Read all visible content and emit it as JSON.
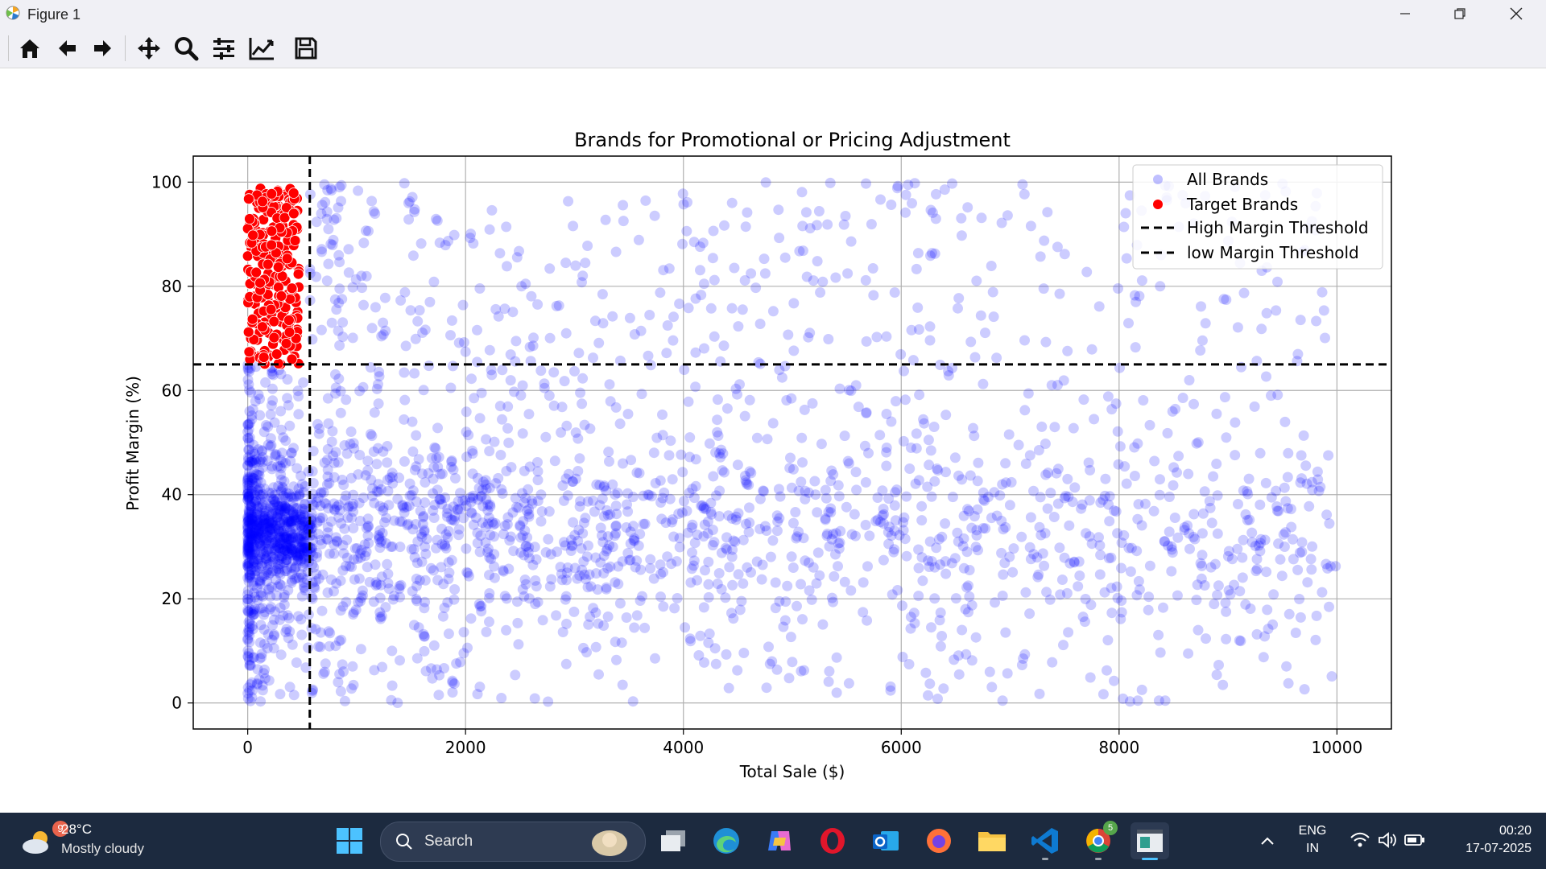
{
  "window": {
    "title": "Figure 1"
  },
  "toolbar": {
    "buttons": [
      "home-icon",
      "back-icon",
      "forward-icon",
      "pan-icon",
      "zoom-icon",
      "configure-subplots-icon",
      "edit-axis-icon",
      "save-icon"
    ]
  },
  "chart_data": {
    "type": "scatter",
    "title": "Brands for Promotional or Pricing Adjustment",
    "xlabel": "Total Sale ($)",
    "ylabel": "Profit Margin (%)",
    "xlim": [
      -500,
      10500
    ],
    "ylim": [
      -5,
      105
    ],
    "xticks": [
      "0",
      "2000",
      "4000",
      "6000",
      "8000",
      "10000"
    ],
    "yticks": [
      "0",
      "20",
      "40",
      "60",
      "80",
      "100"
    ],
    "grid": true,
    "legend_position": "top-right",
    "series": [
      {
        "name": "All Brands",
        "color": "#0000ff",
        "alpha": 0.2,
        "marker": "circle",
        "approx_count": 3000,
        "x_range": [
          0,
          10000
        ],
        "y_range": [
          0,
          100
        ]
      },
      {
        "name": "Target Brands",
        "color": "#ff0000",
        "marker": "circle",
        "x_range": [
          0,
          570
        ],
        "y_range": [
          65,
          100
        ]
      }
    ],
    "reference_lines": [
      {
        "name": "High Margin Threshold",
        "orientation": "horizontal",
        "y": 65,
        "style": "dashed",
        "color": "#000000"
      },
      {
        "name": "low Margin Threshold",
        "orientation": "vertical",
        "x": 570,
        "style": "dashed",
        "color": "#000000"
      }
    ],
    "legend": [
      "All Brands",
      "Target Brands",
      "High Margin Threshold",
      "low Margin Threshold"
    ]
  },
  "taskbar": {
    "weather": {
      "temp": "28°C",
      "desc": "Mostly cloudy",
      "badge": "9"
    },
    "search_label": "Search",
    "apps": [
      "windows-start-icon",
      "task-view-icon",
      "edge-icon",
      "copilot-icon",
      "opera-icon",
      "outlook-icon",
      "firefox-icon",
      "file-explorer-icon",
      "vscode-icon",
      "chrome-icon",
      "python-figure-icon"
    ],
    "chrome_badge": "5",
    "language": {
      "line1": "ENG",
      "line2": "IN"
    },
    "time": "00:20",
    "date": "17-07-2025"
  }
}
